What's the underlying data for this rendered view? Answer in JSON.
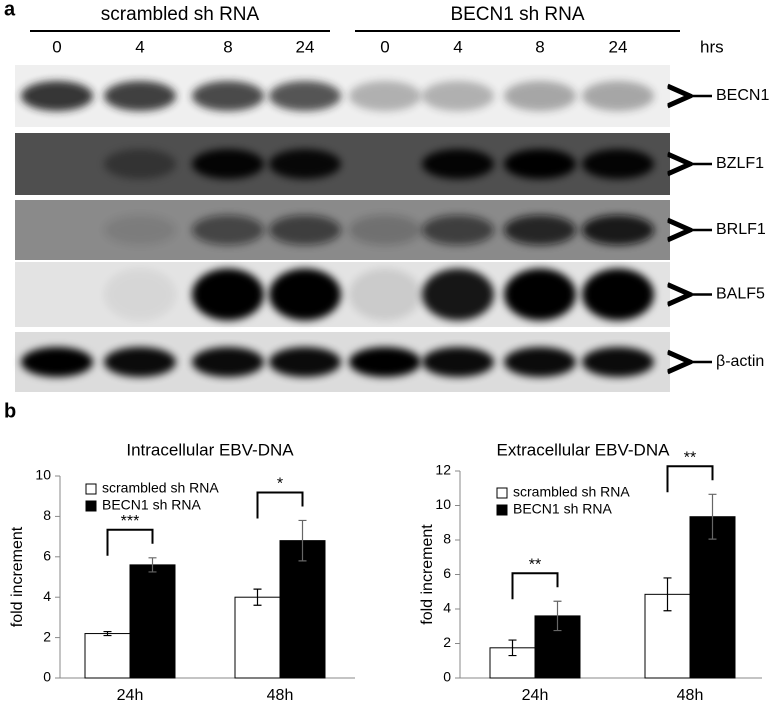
{
  "panels": {
    "a": "a",
    "b": "b"
  },
  "blot": {
    "groups": [
      "scrambled sh RNA",
      "BECN1 sh RNA"
    ],
    "timepoints": [
      "0",
      "4",
      "8",
      "24",
      "0",
      "4",
      "8",
      "24"
    ],
    "time_unit": "hrs",
    "bands": [
      "BECN1",
      "BZLF1",
      "BRLF1",
      "BALF5",
      "β-actin"
    ]
  },
  "chart_data": [
    {
      "type": "bar",
      "title": "Intracellular EBV-DNA",
      "y_label": "fold increment",
      "categories": [
        "24h",
        "48h"
      ],
      "series": [
        {
          "name": "scrambled sh RNA",
          "color": "#ffffff",
          "values": [
            2.2,
            4.0
          ],
          "errors": [
            0.1,
            0.4
          ]
        },
        {
          "name": "BECN1 sh RNA",
          "color": "#000000",
          "values": [
            5.6,
            6.8
          ],
          "errors": [
            0.35,
            1.0
          ]
        }
      ],
      "significance": [
        "***",
        "*"
      ],
      "ylim": [
        0,
        10
      ],
      "yticks": [
        0,
        2,
        4,
        6,
        8,
        10
      ]
    },
    {
      "type": "bar",
      "title": "Extracellular EBV-DNA",
      "y_label": "fold increment",
      "categories": [
        "24h",
        "48h"
      ],
      "series": [
        {
          "name": "scrambled sh RNA",
          "color": "#ffffff",
          "values": [
            1.75,
            4.85
          ],
          "errors": [
            0.45,
            0.95
          ]
        },
        {
          "name": "BECN1 sh RNA",
          "color": "#000000",
          "values": [
            3.6,
            9.35
          ],
          "errors": [
            0.85,
            1.3
          ]
        }
      ],
      "significance": [
        "**",
        "**"
      ],
      "ylim": [
        0,
        12
      ],
      "yticks": [
        0,
        2,
        4,
        6,
        8,
        10,
        12
      ]
    }
  ]
}
